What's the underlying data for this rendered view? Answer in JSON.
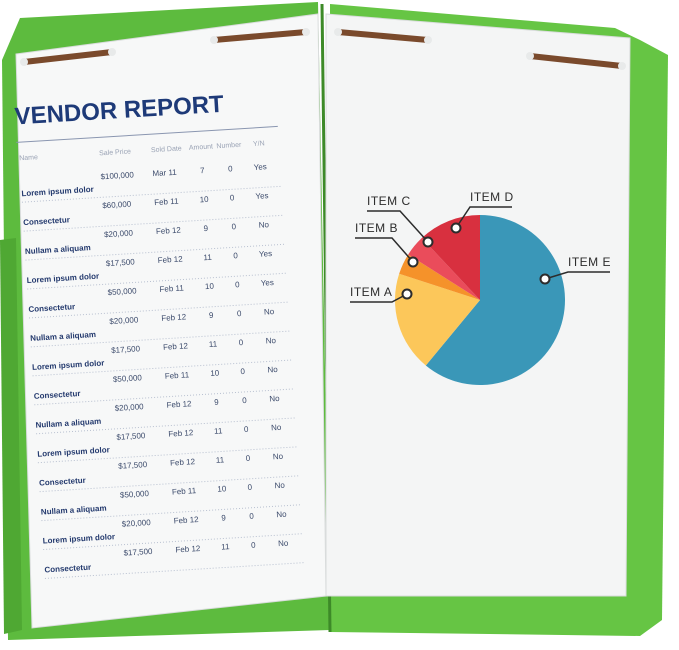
{
  "report": {
    "title": "VENDOR REPORT",
    "header": [
      "Name",
      "Sale Price",
      "Sold Date",
      "Amount",
      "Number",
      "Y/N"
    ],
    "rows": [
      [
        "Lorem ipsum dolor",
        "$100,000",
        "Mar 11",
        "7",
        "0",
        "Yes"
      ],
      [
        "Consectetur",
        "$60,000",
        "Feb 11",
        "10",
        "0",
        "Yes"
      ],
      [
        "Nullam a aliquam",
        "$20,000",
        "Feb 12",
        "9",
        "0",
        "No"
      ],
      [
        "Lorem ipsum dolor",
        "$17,500",
        "Feb 12",
        "11",
        "0",
        "Yes"
      ],
      [
        "Consectetur",
        "$50,000",
        "Feb 11",
        "10",
        "0",
        "Yes"
      ],
      [
        "Nullam a aliquam",
        "$20,000",
        "Feb 12",
        "9",
        "0",
        "No"
      ],
      [
        "Lorem ipsum dolor",
        "$17,500",
        "Feb 12",
        "11",
        "0",
        "No"
      ],
      [
        "Consectetur",
        "$50,000",
        "Feb 11",
        "10",
        "0",
        "No"
      ],
      [
        "Nullam a aliquam",
        "$20,000",
        "Feb 12",
        "9",
        "0",
        "No"
      ],
      [
        "Lorem ipsum dolor",
        "$17,500",
        "Feb 12",
        "11",
        "0",
        "No"
      ],
      [
        "Consectetur",
        "$17,500",
        "Feb 12",
        "11",
        "0",
        "No"
      ],
      [
        "Nullam a aliquam",
        "$50,000",
        "Feb 11",
        "10",
        "0",
        "No"
      ],
      [
        "Lorem ipsum dolor",
        "$20,000",
        "Feb 12",
        "9",
        "0",
        "No"
      ],
      [
        "Consectetur",
        "$17,500",
        "Feb 12",
        "11",
        "0",
        "No"
      ]
    ]
  },
  "pie": {
    "labels": [
      "ITEM A",
      "ITEM B",
      "ITEM C",
      "ITEM D",
      "ITEM E"
    ],
    "values": [
      19,
      4,
      4,
      12,
      61
    ],
    "colors": [
      "#fcc75a",
      "#f5922a",
      "#ea4c5b",
      "#d8303f",
      "#3a97b8"
    ]
  }
}
